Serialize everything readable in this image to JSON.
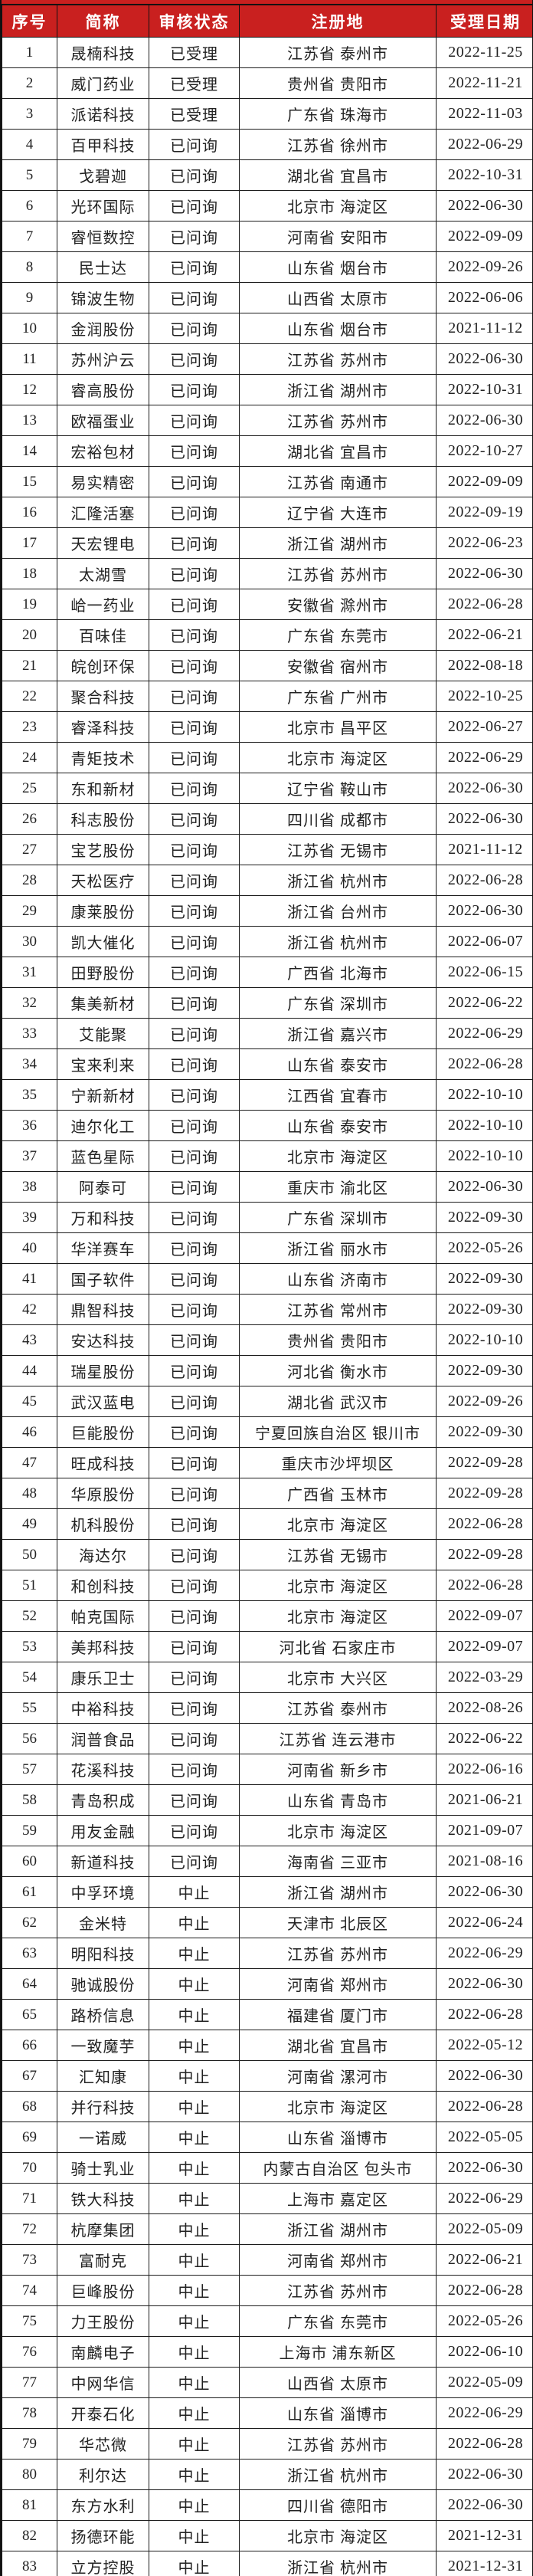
{
  "colors": {
    "header_bg": "#c9201f",
    "header_text": "#ffffff",
    "border": "#1c1c1c",
    "row_bg": "#ffffff",
    "body_text": "#222222"
  },
  "table": {
    "columns": [
      "序号",
      "简称",
      "审核状态",
      "注册地",
      "受理日期"
    ],
    "rows": [
      [
        "1",
        "晟楠科技",
        "已受理",
        "江苏省 泰州市",
        "2022-11-25"
      ],
      [
        "2",
        "威门药业",
        "已受理",
        "贵州省 贵阳市",
        "2022-11-21"
      ],
      [
        "3",
        "派诺科技",
        "已受理",
        "广东省 珠海市",
        "2022-11-03"
      ],
      [
        "4",
        "百甲科技",
        "已问询",
        "江苏省 徐州市",
        "2022-06-29"
      ],
      [
        "5",
        "戈碧迦",
        "已问询",
        "湖北省 宜昌市",
        "2022-10-31"
      ],
      [
        "6",
        "光环国际",
        "已问询",
        "北京市 海淀区",
        "2022-06-30"
      ],
      [
        "7",
        "睿恒数控",
        "已问询",
        "河南省 安阳市",
        "2022-09-09"
      ],
      [
        "8",
        "民士达",
        "已问询",
        "山东省 烟台市",
        "2022-09-26"
      ],
      [
        "9",
        "锦波生物",
        "已问询",
        "山西省 太原市",
        "2022-06-06"
      ],
      [
        "10",
        "金润股份",
        "已问询",
        "山东省 烟台市",
        "2021-11-12"
      ],
      [
        "11",
        "苏州沪云",
        "已问询",
        "江苏省 苏州市",
        "2022-06-30"
      ],
      [
        "12",
        "睿高股份",
        "已问询",
        "浙江省 湖州市",
        "2022-10-31"
      ],
      [
        "13",
        "欧福蛋业",
        "已问询",
        "江苏省 苏州市",
        "2022-06-30"
      ],
      [
        "14",
        "宏裕包材",
        "已问询",
        "湖北省 宜昌市",
        "2022-10-27"
      ],
      [
        "15",
        "易实精密",
        "已问询",
        "江苏省 南通市",
        "2022-09-09"
      ],
      [
        "16",
        "汇隆活塞",
        "已问询",
        "辽宁省 大连市",
        "2022-09-19"
      ],
      [
        "17",
        "天宏锂电",
        "已问询",
        "浙江省 湖州市",
        "2022-06-23"
      ],
      [
        "18",
        "太湖雪",
        "已问询",
        "江苏省 苏州市",
        "2022-06-30"
      ],
      [
        "19",
        "峆一药业",
        "已问询",
        "安徽省 滁州市",
        "2022-06-28"
      ],
      [
        "20",
        "百味佳",
        "已问询",
        "广东省 东莞市",
        "2022-06-21"
      ],
      [
        "21",
        "皖创环保",
        "已问询",
        "安徽省 宿州市",
        "2022-08-18"
      ],
      [
        "22",
        "聚合科技",
        "已问询",
        "广东省 广州市",
        "2022-10-25"
      ],
      [
        "23",
        "睿泽科技",
        "已问询",
        "北京市 昌平区",
        "2022-06-27"
      ],
      [
        "24",
        "青矩技术",
        "已问询",
        "北京市 海淀区",
        "2022-06-29"
      ],
      [
        "25",
        "东和新材",
        "已问询",
        "辽宁省 鞍山市",
        "2022-06-30"
      ],
      [
        "26",
        "科志股份",
        "已问询",
        "四川省 成都市",
        "2022-06-30"
      ],
      [
        "27",
        "宝艺股份",
        "已问询",
        "江苏省 无锡市",
        "2021-11-12"
      ],
      [
        "28",
        "天松医疗",
        "已问询",
        "浙江省 杭州市",
        "2022-06-28"
      ],
      [
        "29",
        "康莱股份",
        "已问询",
        "浙江省 台州市",
        "2022-06-30"
      ],
      [
        "30",
        "凯大催化",
        "已问询",
        "浙江省 杭州市",
        "2022-06-07"
      ],
      [
        "31",
        "田野股份",
        "已问询",
        "广西省 北海市",
        "2022-06-15"
      ],
      [
        "32",
        "集美新材",
        "已问询",
        "广东省 深圳市",
        "2022-06-22"
      ],
      [
        "33",
        "艾能聚",
        "已问询",
        "浙江省 嘉兴市",
        "2022-06-29"
      ],
      [
        "34",
        "宝来利来",
        "已问询",
        "山东省 泰安市",
        "2022-06-28"
      ],
      [
        "35",
        "宁新新材",
        "已问询",
        "江西省 宜春市",
        "2022-10-10"
      ],
      [
        "36",
        "迪尔化工",
        "已问询",
        "山东省 泰安市",
        "2022-10-10"
      ],
      [
        "37",
        "蓝色星际",
        "已问询",
        "北京市 海淀区",
        "2022-10-10"
      ],
      [
        "38",
        "阿泰可",
        "已问询",
        "重庆市 渝北区",
        "2022-06-30"
      ],
      [
        "39",
        "万和科技",
        "已问询",
        "广东省 深圳市",
        "2022-09-30"
      ],
      [
        "40",
        "华洋赛车",
        "已问询",
        "浙江省 丽水市",
        "2022-05-26"
      ],
      [
        "41",
        "国子软件",
        "已问询",
        "山东省 济南市",
        "2022-09-30"
      ],
      [
        "42",
        "鼎智科技",
        "已问询",
        "江苏省 常州市",
        "2022-09-30"
      ],
      [
        "43",
        "安达科技",
        "已问询",
        "贵州省 贵阳市",
        "2022-10-10"
      ],
      [
        "44",
        "瑞星股份",
        "已问询",
        "河北省 衡水市",
        "2022-09-30"
      ],
      [
        "45",
        "武汉蓝电",
        "已问询",
        "湖北省 武汉市",
        "2022-09-26"
      ],
      [
        "46",
        "巨能股份",
        "已问询",
        "宁夏回族自治区 银川市",
        "2022-09-30"
      ],
      [
        "47",
        "旺成科技",
        "已问询",
        "重庆市沙坪坝区",
        "2022-09-28"
      ],
      [
        "48",
        "华原股份",
        "已问询",
        "广西省 玉林市",
        "2022-09-28"
      ],
      [
        "49",
        "机科股份",
        "已问询",
        "北京市 海淀区",
        "2022-06-28"
      ],
      [
        "50",
        "海达尔",
        "已问询",
        "江苏省 无锡市",
        "2022-09-28"
      ],
      [
        "51",
        "和创科技",
        "已问询",
        "北京市 海淀区",
        "2022-06-28"
      ],
      [
        "52",
        "帕克国际",
        "已问询",
        "北京市 海淀区",
        "2022-09-07"
      ],
      [
        "53",
        "美邦科技",
        "已问询",
        "河北省 石家庄市",
        "2022-09-07"
      ],
      [
        "54",
        "康乐卫士",
        "已问询",
        "北京市 大兴区",
        "2022-03-29"
      ],
      [
        "55",
        "中裕科技",
        "已问询",
        "江苏省 泰州市",
        "2022-08-26"
      ],
      [
        "56",
        "润普食品",
        "已问询",
        "江苏省 连云港市",
        "2022-06-22"
      ],
      [
        "57",
        "花溪科技",
        "已问询",
        "河南省 新乡市",
        "2022-06-16"
      ],
      [
        "58",
        "青岛积成",
        "已问询",
        "山东省 青岛市",
        "2021-06-21"
      ],
      [
        "59",
        "用友金融",
        "已问询",
        "北京市 海淀区",
        "2021-09-07"
      ],
      [
        "60",
        "新道科技",
        "已问询",
        "海南省 三亚市",
        "2021-08-16"
      ],
      [
        "61",
        "中孚环境",
        "中止",
        "浙江省 湖州市",
        "2022-06-30"
      ],
      [
        "62",
        "金米特",
        "中止",
        "天津市 北辰区",
        "2022-06-24"
      ],
      [
        "63",
        "明阳科技",
        "中止",
        "江苏省 苏州市",
        "2022-06-29"
      ],
      [
        "64",
        "驰诚股份",
        "中止",
        "河南省 郑州市",
        "2022-06-30"
      ],
      [
        "65",
        "路桥信息",
        "中止",
        "福建省 厦门市",
        "2022-06-28"
      ],
      [
        "66",
        "一致魔芋",
        "中止",
        "湖北省 宜昌市",
        "2022-05-12"
      ],
      [
        "67",
        "汇知康",
        "中止",
        "河南省 漯河市",
        "2022-06-30"
      ],
      [
        "68",
        "并行科技",
        "中止",
        "北京市 海淀区",
        "2022-06-28"
      ],
      [
        "69",
        "一诺威",
        "中止",
        "山东省 淄博市",
        "2022-05-05"
      ],
      [
        "70",
        "骑士乳业",
        "中止",
        "内蒙古自治区 包头市",
        "2022-06-30"
      ],
      [
        "71",
        "铁大科技",
        "中止",
        "上海市 嘉定区",
        "2022-06-29"
      ],
      [
        "72",
        "杭摩集团",
        "中止",
        "浙江省 湖州市",
        "2022-05-09"
      ],
      [
        "73",
        "富耐克",
        "中止",
        "河南省 郑州市",
        "2022-06-21"
      ],
      [
        "74",
        "巨峰股份",
        "中止",
        "江苏省 苏州市",
        "2022-06-28"
      ],
      [
        "75",
        "力王股份",
        "中止",
        "广东省 东莞市",
        "2022-05-26"
      ],
      [
        "76",
        "南麟电子",
        "中止",
        "上海市 浦东新区",
        "2022-06-10"
      ],
      [
        "77",
        "中网华信",
        "中止",
        "山西省 太原市",
        "2022-05-09"
      ],
      [
        "78",
        "开泰石化",
        "中止",
        "山东省 淄博市",
        "2022-06-29"
      ],
      [
        "79",
        "华芯微",
        "中止",
        "江苏省 苏州市",
        "2022-06-28"
      ],
      [
        "80",
        "利尔达",
        "中止",
        "浙江省 杭州市",
        "2022-06-30"
      ],
      [
        "81",
        "东方水利",
        "中止",
        "四川省 德阳市",
        "2022-06-30"
      ],
      [
        "82",
        "扬德环能",
        "中止",
        "北京市 海淀区",
        "2021-12-31"
      ],
      [
        "83",
        "立方控股",
        "中止",
        "浙江省 杭州市",
        "2021-12-31"
      ]
    ]
  }
}
